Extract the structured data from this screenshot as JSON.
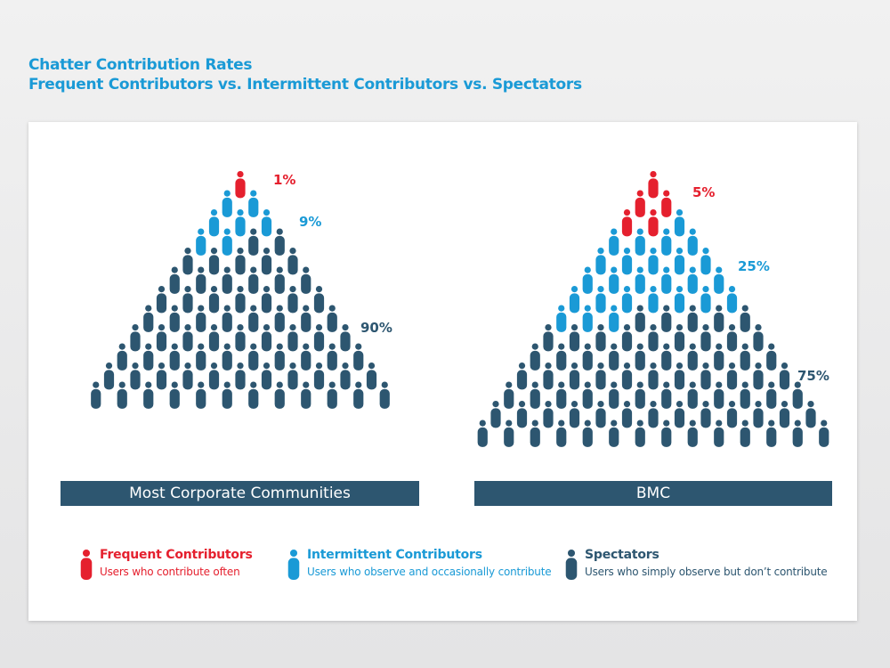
{
  "title": "Chatter Contribution Rates",
  "subtitle": "Frequent Contributors vs. Intermittent Contributors vs. Spectators",
  "colors": {
    "frequent": "#e5202e",
    "intermittent": "#1a9ad6",
    "spectator": "#2d5670",
    "title": "#1a9ad6"
  },
  "icon": "person-icon",
  "chart_data": [
    {
      "type": "pictograph",
      "category": "Most Corporate Communities",
      "rows": 12,
      "series": [
        {
          "name": "Frequent Contributors",
          "percent": 1,
          "label": "1%"
        },
        {
          "name": "Intermittent Contributors",
          "percent": 9,
          "label": "9%"
        },
        {
          "name": "Spectators",
          "percent": 90,
          "label": "90%"
        }
      ]
    },
    {
      "type": "pictograph",
      "category": "BMC",
      "rows": 14,
      "series": [
        {
          "name": "Frequent Contributors",
          "percent": 5,
          "label": "5%"
        },
        {
          "name": "Intermittent Contributors",
          "percent": 25,
          "label": "25%"
        },
        {
          "name": "Spectators",
          "percent": 75,
          "label": "75%"
        }
      ]
    }
  ],
  "legend": [
    {
      "title": "Frequent Contributors",
      "description": "Users who contribute often",
      "color": "#e5202e"
    },
    {
      "title": "Intermittent Contributors",
      "description": "Users who observe and occasionally contribute",
      "color": "#1a9ad6"
    },
    {
      "title": "Spectators",
      "description": "Users who simply observe but don’t contribute",
      "color": "#2d5670"
    }
  ]
}
